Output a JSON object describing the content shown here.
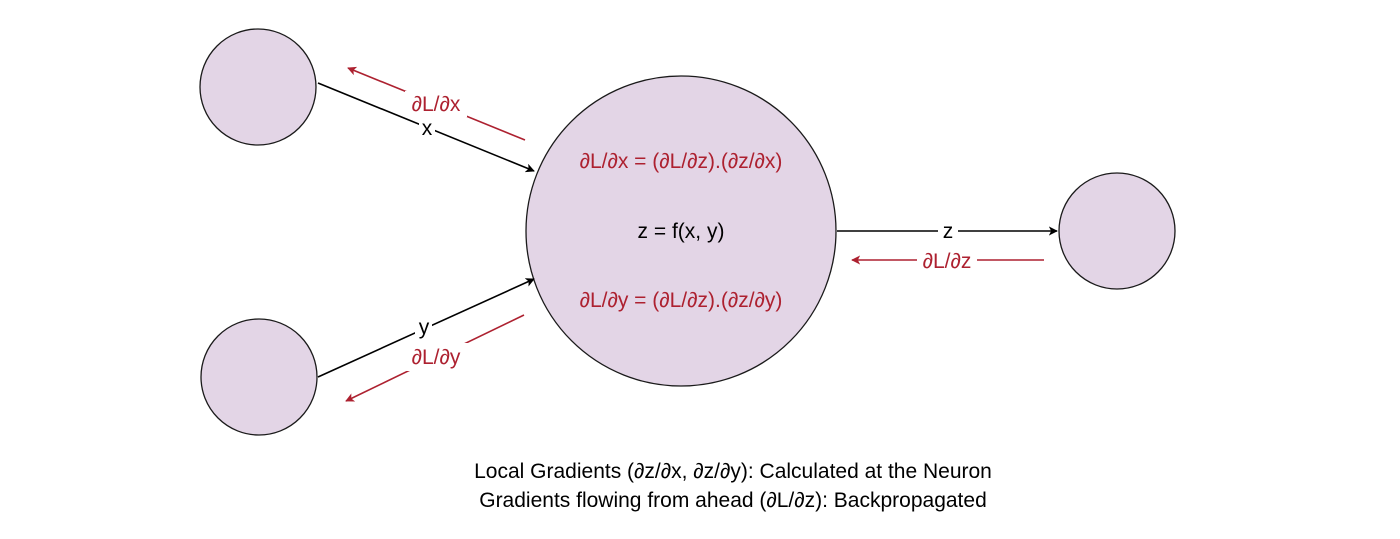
{
  "colors": {
    "node_fill": "#e3d5e6",
    "node_stroke": "#1a1a1a",
    "forward": "#000000",
    "gradient": "#ad2130",
    "text": "#000000"
  },
  "nodes": {
    "input_x": "",
    "input_y": "",
    "neuron": "",
    "output": ""
  },
  "neuron": {
    "grad_x_formula": "∂L/∂x = (∂L/∂z).(∂z/∂x)",
    "function": "z = f(x, y)",
    "grad_y_formula": "∂L/∂y = (∂L/∂z).(∂z/∂y)"
  },
  "edges": {
    "x_label": "x",
    "y_label": "y",
    "z_label": "z",
    "grad_x_label": "∂L/∂x",
    "grad_y_label": "∂L/∂y",
    "grad_z_label": "∂L/∂z"
  },
  "caption": {
    "line1": "Local Gradients (∂z/∂x, ∂z/∂y): Calculated at the Neuron",
    "line2": "Gradients flowing from ahead (∂L/∂z): Backpropagated"
  }
}
